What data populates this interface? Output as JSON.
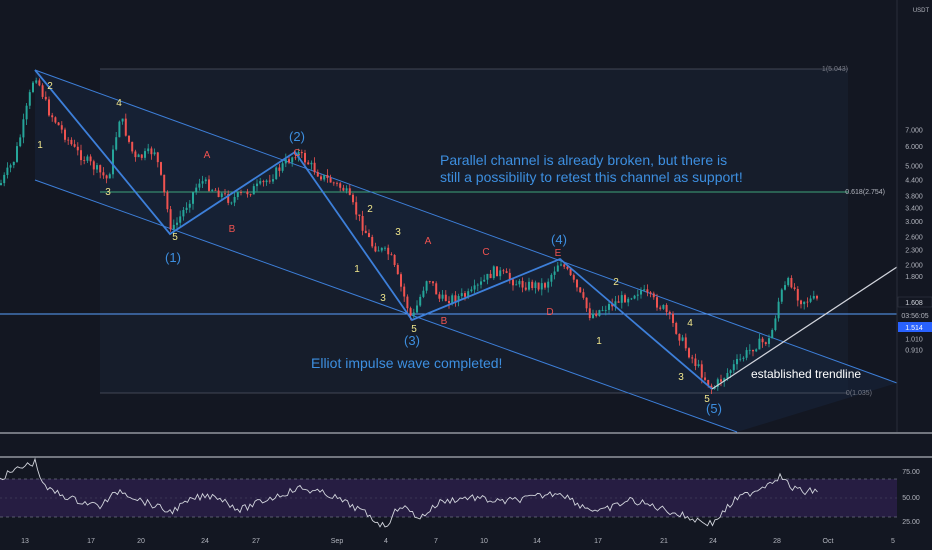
{
  "chart_data": {
    "type": "candlestick",
    "instrument": "",
    "quote_currency": "USDT",
    "y_scale": "log",
    "y_ticks": [
      "7.000",
      "6.000",
      "5.000",
      "4.400",
      "3.800",
      "3.400",
      "3.000",
      "2.600",
      "2.300",
      "2.000",
      "1.800",
      "1.250",
      "1.130",
      "1.010",
      "0.910"
    ],
    "x_ticks": [
      "13",
      "17",
      "20",
      "24",
      "27",
      "Sep",
      "4",
      "7",
      "10",
      "14",
      "17",
      "21",
      "24",
      "28",
      "Oct",
      "5"
    ],
    "price_labels": {
      "last": "1.608",
      "countdown": "03:56:05",
      "level": "1.514"
    },
    "fibonacci": [
      {
        "label": "1(5.043)",
        "value": 5.043
      },
      {
        "label": "0.618(2.754)",
        "value": 2.754
      },
      {
        "label": "0(1.035)",
        "value": 1.035
      }
    ],
    "annotations": [
      {
        "text": "Parallel channel is already broken, but there is"
      },
      {
        "text": "still a possibility to retest this channel as support!"
      },
      {
        "text": "Elliot impulse wave completed!"
      },
      {
        "text": "established trendline"
      }
    ],
    "wave_labels": {
      "major": [
        "(1)",
        "(2)",
        "(3)",
        "(4)",
        "(5)"
      ],
      "minor": [
        "1",
        "2",
        "3",
        "4",
        "5",
        "3",
        "5",
        "2",
        "1",
        "3",
        "4",
        "5",
        "2",
        "1",
        "4",
        "3",
        "5"
      ],
      "abc": [
        "A",
        "B",
        "C",
        "A",
        "B",
        "C",
        "D",
        "E"
      ]
    },
    "rsi": {
      "y_ticks": [
        "75.00",
        "50.00",
        "25.00"
      ],
      "range": [
        0,
        100
      ],
      "upper_band": 70,
      "lower_band": 30
    },
    "colors": {
      "background": "#131722",
      "up": "#26a69a",
      "down": "#ef5350",
      "wave_line": "#3d7fd9",
      "annotation_text": "#3d8fe0",
      "fib_line": "#3fa37a",
      "rsi_line": "#d1d4dc",
      "rsi_band": "#2a1e48",
      "axis_text": "#b2b5be",
      "price_tag": "#2962ff"
    }
  }
}
